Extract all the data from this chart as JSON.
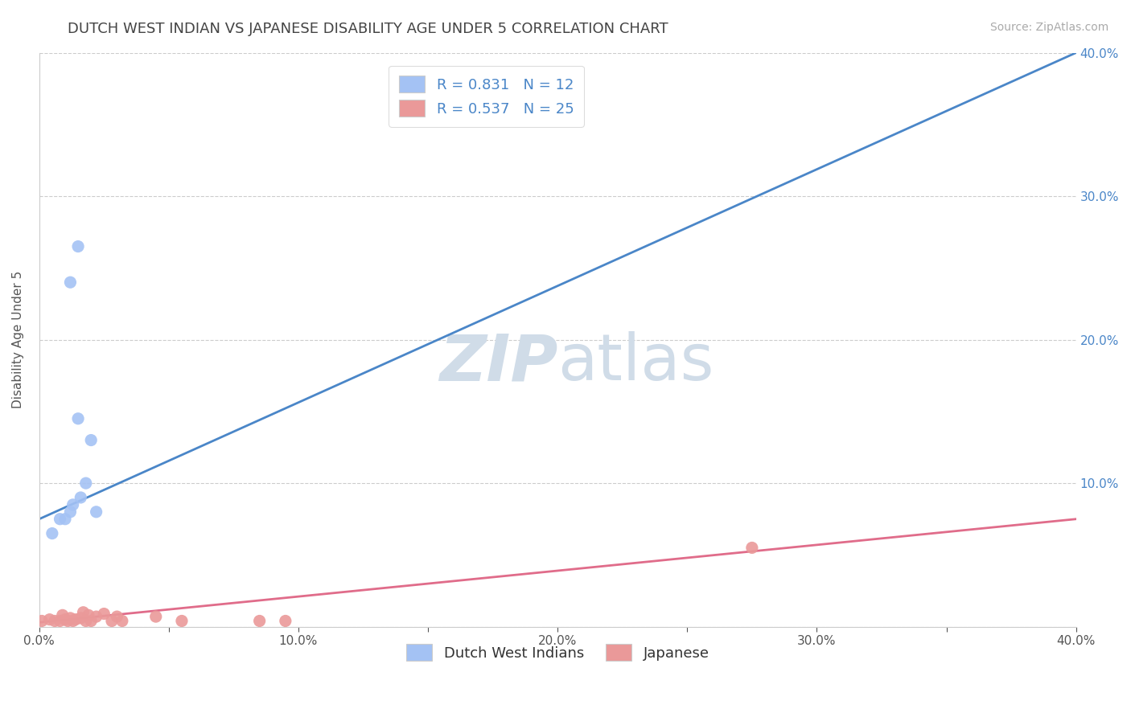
{
  "title": "DUTCH WEST INDIAN VS JAPANESE DISABILITY AGE UNDER 5 CORRELATION CHART",
  "source_text": "Source: ZipAtlas.com",
  "ylabel": "Disability Age Under 5",
  "xlabel": "",
  "xlim": [
    0.0,
    0.4
  ],
  "ylim": [
    0.0,
    0.4
  ],
  "xtick_labels": [
    "0.0%",
    "",
    "10.0%",
    "",
    "20.0%",
    "",
    "30.0%",
    "",
    "40.0%"
  ],
  "xtick_vals": [
    0.0,
    0.05,
    0.1,
    0.15,
    0.2,
    0.25,
    0.3,
    0.35,
    0.4
  ],
  "ytick_vals": [
    0.0,
    0.1,
    0.2,
    0.3,
    0.4
  ],
  "right_ytick_labels": [
    "",
    "10.0%",
    "20.0%",
    "30.0%",
    "40.0%"
  ],
  "right_ytick_vals": [
    0.0,
    0.1,
    0.2,
    0.3,
    0.4
  ],
  "blue_scatter_x": [
    0.005,
    0.008,
    0.01,
    0.012,
    0.013,
    0.015,
    0.016,
    0.018,
    0.02,
    0.022,
    0.012,
    0.015
  ],
  "blue_scatter_y": [
    0.065,
    0.075,
    0.075,
    0.08,
    0.085,
    0.145,
    0.09,
    0.1,
    0.13,
    0.08,
    0.24,
    0.265
  ],
  "pink_scatter_x": [
    0.001,
    0.004,
    0.006,
    0.008,
    0.009,
    0.01,
    0.011,
    0.012,
    0.013,
    0.014,
    0.016,
    0.017,
    0.018,
    0.019,
    0.02,
    0.022,
    0.025,
    0.028,
    0.03,
    0.032,
    0.045,
    0.055,
    0.085,
    0.095,
    0.275
  ],
  "pink_scatter_y": [
    0.004,
    0.005,
    0.004,
    0.004,
    0.008,
    0.005,
    0.004,
    0.006,
    0.004,
    0.005,
    0.006,
    0.01,
    0.004,
    0.008,
    0.004,
    0.007,
    0.009,
    0.004,
    0.007,
    0.004,
    0.007,
    0.004,
    0.004,
    0.004,
    0.055
  ],
  "blue_line_x": [
    0.0,
    0.4
  ],
  "blue_line_y": [
    0.075,
    0.4
  ],
  "pink_line_x": [
    0.0,
    0.4
  ],
  "pink_line_y": [
    0.003,
    0.075
  ],
  "blue_color": "#a4c2f4",
  "pink_color": "#ea9999",
  "blue_line_color": "#4a86c8",
  "pink_line_color": "#e06c8a",
  "blue_r": "0.831",
  "blue_n": "12",
  "pink_r": "0.537",
  "pink_n": "25",
  "legend_label_blue": "Dutch West Indians",
  "legend_label_pink": "Japanese",
  "watermark_zip": "ZIP",
  "watermark_atlas": "atlas",
  "watermark_color": "#d0dce8",
  "grid_color": "#cccccc",
  "background_color": "#ffffff",
  "title_color": "#444444",
  "scatter_size": 120
}
